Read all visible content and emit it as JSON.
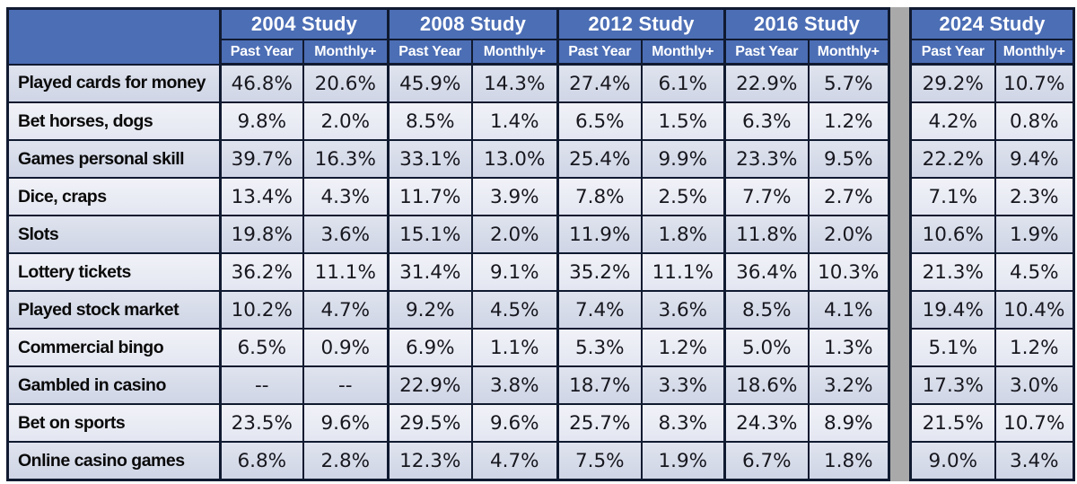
{
  "chart_data": {
    "type": "table",
    "title": "",
    "column_groups": [
      "2004 Study",
      "2008 Study",
      "2012 Study",
      "2016 Study",
      "2024 Study"
    ],
    "sub_columns": [
      "Past Year",
      "Monthly+"
    ],
    "rows": [
      {
        "label": "Played cards for money",
        "values": [
          "46.8%",
          "20.6%",
          "45.9%",
          "14.3%",
          "27.4%",
          "6.1%",
          "22.9%",
          "5.7%",
          "29.2%",
          "10.7%"
        ]
      },
      {
        "label": "Bet horses, dogs",
        "values": [
          "9.8%",
          "2.0%",
          "8.5%",
          "1.4%",
          "6.5%",
          "1.5%",
          "6.3%",
          "1.2%",
          "4.2%",
          "0.8%"
        ]
      },
      {
        "label": "Games personal skill",
        "values": [
          "39.7%",
          "16.3%",
          "33.1%",
          "13.0%",
          "25.4%",
          "9.9%",
          "23.3%",
          "9.5%",
          "22.2%",
          "9.4%"
        ]
      },
      {
        "label": "Dice, craps",
        "values": [
          "13.4%",
          "4.3%",
          "11.7%",
          "3.9%",
          "7.8%",
          "2.5%",
          "7.7%",
          "2.7%",
          "7.1%",
          "2.3%"
        ]
      },
      {
        "label": "Slots",
        "values": [
          "19.8%",
          "3.6%",
          "15.1%",
          "2.0%",
          "11.9%",
          "1.8%",
          "11.8%",
          "2.0%",
          "10.6%",
          "1.9%"
        ]
      },
      {
        "label": "Lottery tickets",
        "values": [
          "36.2%",
          "11.1%",
          "31.4%",
          "9.1%",
          "35.2%",
          "11.1%",
          "36.4%",
          "10.3%",
          "21.3%",
          "4.5%"
        ]
      },
      {
        "label": "Played stock market",
        "values": [
          "10.2%",
          "4.7%",
          "9.2%",
          "4.5%",
          "7.4%",
          "3.6%",
          "8.5%",
          "4.1%",
          "19.4%",
          "10.4%"
        ]
      },
      {
        "label": "Commercial bingo",
        "values": [
          "6.5%",
          "0.9%",
          "6.9%",
          "1.1%",
          "5.3%",
          "1.2%",
          "5.0%",
          "1.3%",
          "5.1%",
          "1.2%"
        ]
      },
      {
        "label": "Gambled in casino",
        "values": [
          "--",
          "--",
          "22.9%",
          "3.8%",
          "18.7%",
          "3.3%",
          "18.6%",
          "3.2%",
          "17.3%",
          "3.0%"
        ]
      },
      {
        "label": "Bet on sports",
        "values": [
          "23.5%",
          "9.6%",
          "29.5%",
          "9.6%",
          "25.7%",
          "8.3%",
          "24.3%",
          "8.9%",
          "21.5%",
          "10.7%"
        ]
      },
      {
        "label": "Online casino games",
        "values": [
          "6.8%",
          "2.8%",
          "12.3%",
          "4.7%",
          "7.5%",
          "1.9%",
          "6.7%",
          "1.8%",
          "9.0%",
          "3.4%"
        ]
      }
    ]
  },
  "colors": {
    "header_bg": "#4c6eb5",
    "header_text": "#ffffff",
    "row_dark": "#d3d8e7",
    "row_light": "#e9ebf4",
    "border": "#101a30",
    "separator_band": "#a9a9a9",
    "body_text": "#17171e"
  }
}
